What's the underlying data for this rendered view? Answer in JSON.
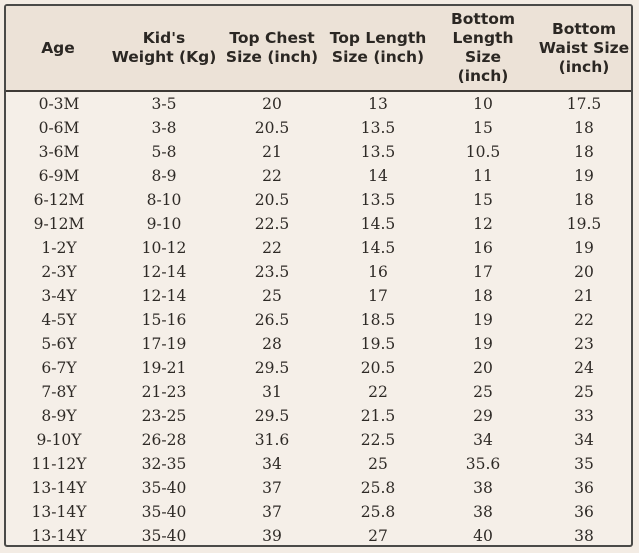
{
  "headers": [
    "Age",
    "Kid's\nWeight (Kg)",
    "Top Chest\nSize (inch)",
    "Top Length\nSize (inch)",
    "Bottom\nLength Size\n(inch)",
    "Bottom\nWaist Size\n(inch)"
  ],
  "rows": [
    [
      "0-3M",
      "3-5",
      "20",
      "13",
      "10",
      "17.5"
    ],
    [
      "0-6M",
      "3-8",
      "20.5",
      "13.5",
      "15",
      "18"
    ],
    [
      "3-6M",
      "5-8",
      "21",
      "13.5",
      "10.5",
      "18"
    ],
    [
      "6-9M",
      "8-9",
      "22",
      "14",
      "11",
      "19"
    ],
    [
      "6-12M",
      "8-10",
      "20.5",
      "13.5",
      "15",
      "18"
    ],
    [
      "9-12M",
      "9-10",
      "22.5",
      "14.5",
      "12",
      "19.5"
    ],
    [
      "1-2Y",
      "10-12",
      "22",
      "14.5",
      "16",
      "19"
    ],
    [
      "2-3Y",
      "12-14",
      "23.5",
      "16",
      "17",
      "20"
    ],
    [
      "3-4Y",
      "12-14",
      "25",
      "17",
      "18",
      "21"
    ],
    [
      "4-5Y",
      "15-16",
      "26.5",
      "18.5",
      "19",
      "22"
    ],
    [
      "5-6Y",
      "17-19",
      "28",
      "19.5",
      "19",
      "23"
    ],
    [
      "6-7Y",
      "19-21",
      "29.5",
      "20.5",
      "20",
      "24"
    ],
    [
      "7-8Y",
      "21-23",
      "31",
      "22",
      "25",
      "25"
    ],
    [
      "8-9Y",
      "23-25",
      "29.5",
      "21.5",
      "29",
      "33"
    ],
    [
      "9-10Y",
      "26-28",
      "31.6",
      "22.5",
      "34",
      "34"
    ],
    [
      "11-12Y",
      "32-35",
      "34",
      "25",
      "35.6",
      "35"
    ],
    [
      "13-14Y",
      "35-40",
      "37",
      "25.8",
      "38",
      "36"
    ],
    [
      "13-14Y",
      "35-40",
      "37",
      "25.8",
      "38",
      "36"
    ],
    [
      "13-14Y",
      "35-40",
      "39",
      "27",
      "40",
      "38"
    ]
  ]
}
